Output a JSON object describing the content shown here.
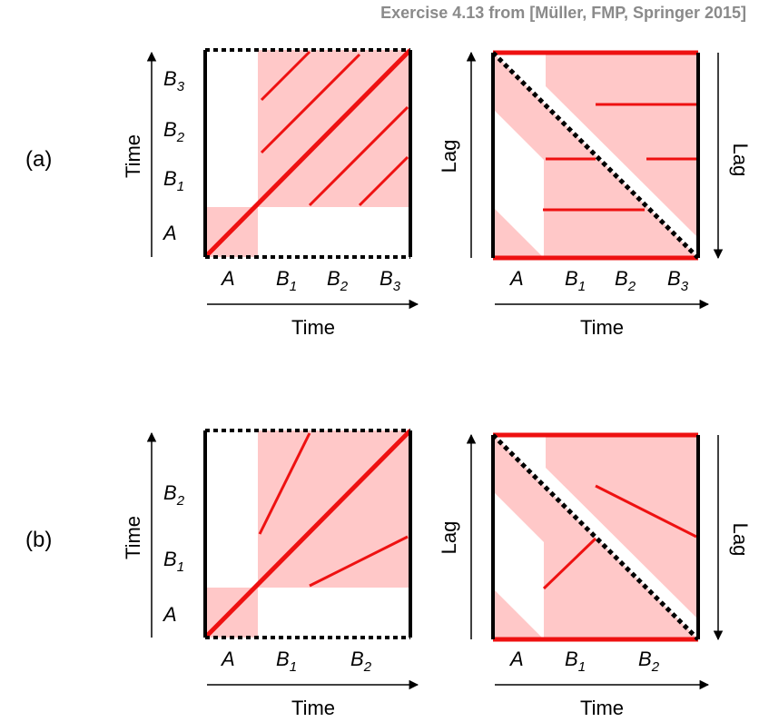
{
  "caption": "Exercise 4.13 from [Müller, FMP, Springer 2015]",
  "colors": {
    "shade": "#ffc8c8",
    "path": "#ee1111",
    "frame": "#000000"
  },
  "rows": [
    {
      "label": "(a)",
      "segments_x": [
        "A",
        "B",
        "B",
        "B"
      ],
      "segments_x_sub": [
        "",
        "1",
        "2",
        "3"
      ],
      "segments_y": [
        "A",
        "B",
        "B",
        "B"
      ],
      "segments_y_sub": [
        "",
        "1",
        "2",
        "3"
      ],
      "time_label": "Time",
      "lag_label": "Lag"
    },
    {
      "label": "(b)",
      "segments_x": [
        "A",
        "B",
        "B"
      ],
      "segments_x_sub": [
        "",
        "1",
        "2"
      ],
      "segments_y": [
        "A",
        "B",
        "B"
      ],
      "segments_y_sub": [
        "",
        "1",
        "2"
      ],
      "time_label": "Time",
      "lag_label": "Lag"
    }
  ]
}
